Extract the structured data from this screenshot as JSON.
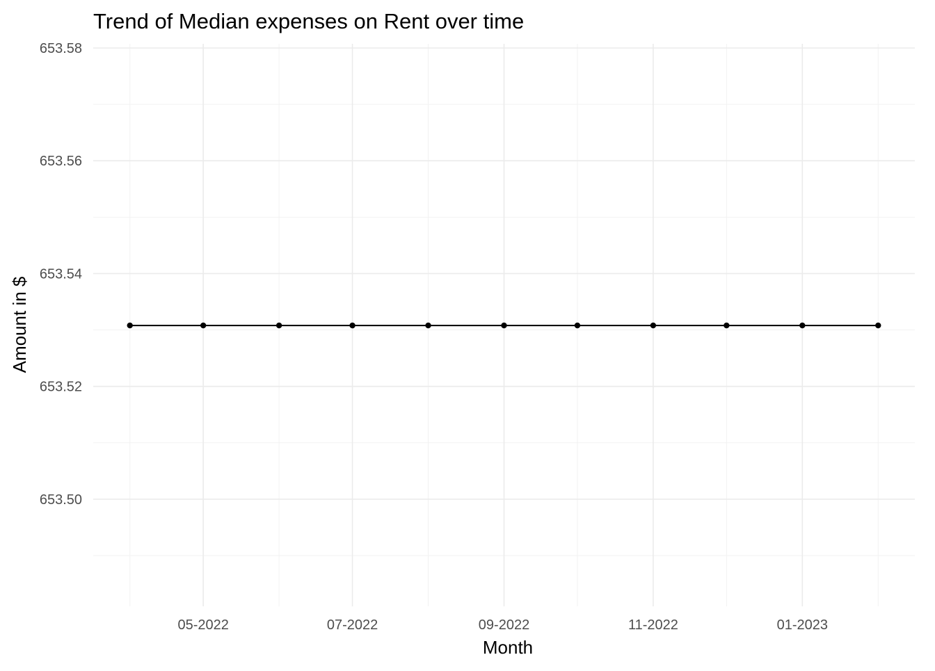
{
  "chart_data": {
    "type": "line",
    "title": "Trend of Median expenses on Rent over time",
    "xlabel": "Month",
    "ylabel": "Amount in $",
    "x": [
      "2022-04-01",
      "2022-05-01",
      "2022-06-01",
      "2022-07-01",
      "2022-08-01",
      "2022-09-01",
      "2022-10-01",
      "2022-11-01",
      "2022-12-01",
      "2023-01-01",
      "2023-02-01"
    ],
    "series": [
      {
        "values": [
          653.5308,
          653.5308,
          653.5308,
          653.5308,
          653.5308,
          653.5308,
          653.5308,
          653.5308,
          653.5308,
          653.5308,
          653.5308
        ],
        "color": "#000000"
      }
    ],
    "x_tick_labels": [
      {
        "date": "2022-05-01",
        "label": "05-2022"
      },
      {
        "date": "2022-07-01",
        "label": "07-2022"
      },
      {
        "date": "2022-09-01",
        "label": "09-2022"
      },
      {
        "date": "2022-11-01",
        "label": "11-2022"
      },
      {
        "date": "2023-01-01",
        "label": "01-2023"
      }
    ],
    "x_minor_ticks": [
      "2022-04-01",
      "2022-06-01",
      "2022-08-01",
      "2022-10-01",
      "2022-12-01",
      "2023-02-01"
    ],
    "y_ticks": [
      653.5,
      653.52,
      653.54,
      653.56,
      653.58
    ],
    "y_tick_labels": [
      "653.50",
      "653.52",
      "653.54",
      "653.56",
      "653.58"
    ],
    "y_minor_ticks": [
      653.49,
      653.51,
      653.53,
      653.55,
      653.57
    ],
    "ylim": [
      653.481,
      653.58
    ],
    "xlim": [
      "2022-03-17",
      "2023-02-16"
    ],
    "grid": true,
    "legend": "none",
    "gridline_color": "#ebebeb",
    "tick_label_color": "#4d4d4d"
  }
}
